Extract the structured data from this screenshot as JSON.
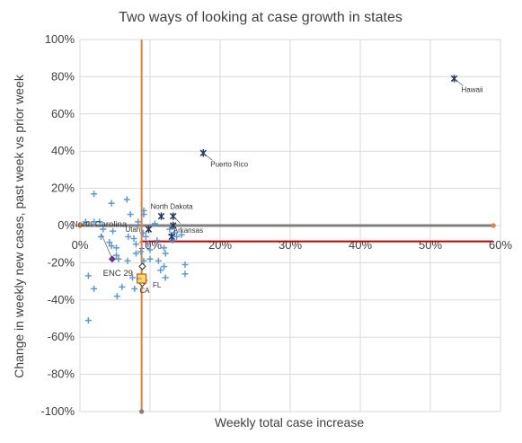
{
  "chart_data": {
    "type": "scatter",
    "title": "Two ways of looking at case growth in states",
    "xlabel": "Weekly total case increase",
    "ylabel": "Change in weekly new cases, past week vs prior week",
    "xlim": [
      0,
      0.6
    ],
    "ylim": [
      -1.0,
      1.0
    ],
    "x_ticks": [
      0,
      0.1,
      0.2,
      0.3,
      0.4,
      0.5,
      0.6
    ],
    "x_tick_labels": [
      "0%",
      "10%",
      "20%",
      "30%",
      "40%",
      "50%",
      "60%"
    ],
    "y_ticks": [
      1.0,
      0.8,
      0.6,
      0.4,
      0.2,
      0.0,
      -0.2,
      -0.4,
      -0.6,
      -0.8,
      -1.0
    ],
    "y_tick_labels": [
      "100%",
      "80%",
      "60%",
      "40%",
      "20%",
      "0%",
      "-20%",
      "-40%",
      "-60%",
      "-80%",
      "-100%"
    ],
    "grid": true,
    "legend": "none",
    "colors": {
      "states": "#5b9bd5",
      "labeled_states": "#1f3864",
      "orange_ref": "#ed7d31",
      "gray_ref": "#808080",
      "red_ref": "#c00000",
      "north_carolina": "#7030a0",
      "enc": "#ffd966",
      "grid": "#d9d9d9"
    },
    "reference_lines": {
      "vertical_orange": {
        "x": 0.088,
        "y_range": [
          -1.0,
          1.0
        ]
      },
      "horizontal_gray": {
        "y": 0.0,
        "x_range": [
          0.0,
          0.59
        ]
      },
      "horizontal_red": {
        "y": -0.085,
        "x_range": [
          0.088,
          0.59
        ]
      }
    },
    "series": [
      {
        "marker": "plus",
        "points": [
          {
            "x": 0.02,
            "y": 0.17
          },
          {
            "x": 0.045,
            "y": 0.12
          },
          {
            "x": 0.067,
            "y": 0.14
          },
          {
            "x": 0.072,
            "y": 0.06
          },
          {
            "x": 0.083,
            "y": 0.02
          },
          {
            "x": 0.091,
            "y": 0.08
          },
          {
            "x": 0.091,
            "y": 0.06
          },
          {
            "x": 0.028,
            "y": 0.02
          },
          {
            "x": 0.02,
            "y": 0.02
          },
          {
            "x": 0.008,
            "y": 0.02
          },
          {
            "x": 0.033,
            "y": -0.02
          },
          {
            "x": 0.047,
            "y": -0.03
          },
          {
            "x": 0.03,
            "y": -0.06
          },
          {
            "x": 0.042,
            "y": -0.09
          },
          {
            "x": 0.045,
            "y": -0.11
          },
          {
            "x": 0.052,
            "y": -0.12
          },
          {
            "x": 0.069,
            "y": -0.06
          },
          {
            "x": 0.077,
            "y": -0.07
          },
          {
            "x": 0.08,
            "y": -0.1
          },
          {
            "x": 0.09,
            "y": -0.04
          },
          {
            "x": 0.094,
            "y": -0.06
          },
          {
            "x": 0.097,
            "y": -0.1
          },
          {
            "x": 0.1,
            "y": -0.13
          },
          {
            "x": 0.107,
            "y": 0.01
          },
          {
            "x": 0.11,
            "y": -0.08
          },
          {
            "x": 0.12,
            "y": -0.12
          },
          {
            "x": 0.122,
            "y": -0.15
          },
          {
            "x": 0.128,
            "y": -0.02
          },
          {
            "x": 0.13,
            "y": -0.05
          },
          {
            "x": 0.132,
            "y": -0.08
          },
          {
            "x": 0.135,
            "y": -0.04
          },
          {
            "x": 0.138,
            "y": -0.06
          },
          {
            "x": 0.145,
            "y": -0.05
          },
          {
            "x": 0.052,
            "y": -0.16
          },
          {
            "x": 0.055,
            "y": -0.18
          },
          {
            "x": 0.068,
            "y": -0.19
          },
          {
            "x": 0.08,
            "y": -0.15
          },
          {
            "x": 0.087,
            "y": -0.14
          },
          {
            "x": 0.091,
            "y": -0.19
          },
          {
            "x": 0.1,
            "y": -0.18
          },
          {
            "x": 0.112,
            "y": -0.19
          },
          {
            "x": 0.115,
            "y": -0.24
          },
          {
            "x": 0.12,
            "y": -0.22
          },
          {
            "x": 0.122,
            "y": -0.28
          },
          {
            "x": 0.15,
            "y": -0.21
          },
          {
            "x": 0.15,
            "y": -0.26
          },
          {
            "x": 0.075,
            "y": -0.28
          },
          {
            "x": 0.078,
            "y": -0.34
          },
          {
            "x": 0.06,
            "y": -0.33
          },
          {
            "x": 0.053,
            "y": -0.38
          },
          {
            "x": 0.012,
            "y": -0.27
          },
          {
            "x": 0.02,
            "y": -0.34
          },
          {
            "x": 0.012,
            "y": -0.51
          }
        ]
      },
      {
        "marker": "star",
        "points": [
          {
            "label": "Hawaii",
            "x": 0.534,
            "y": 0.79
          },
          {
            "label": "Puerto Rico",
            "x": 0.176,
            "y": 0.39
          },
          {
            "label": "North Dakota",
            "x": 0.116,
            "y": 0.05
          },
          {
            "label": "",
            "x": 0.133,
            "y": 0.05
          },
          {
            "label": "Arkansas",
            "x": 0.133,
            "y": 0.0
          },
          {
            "label": "Utah",
            "x": 0.098,
            "y": -0.02
          },
          {
            "label": "",
            "x": 0.131,
            "y": -0.06
          }
        ]
      },
      {
        "marker": "diamond",
        "points": [
          {
            "label": "North Carolina",
            "x": 0.046,
            "y": -0.18
          }
        ]
      },
      {
        "marker": "diamond_open",
        "points": [
          {
            "label": "",
            "x": 0.089,
            "y": -0.22
          },
          {
            "label": "CA",
            "x": 0.089,
            "y": -0.31
          },
          {
            "label": "FL",
            "x": 0.091,
            "y": -0.295
          }
        ]
      },
      {
        "marker": "square",
        "points": [
          {
            "label": "ENC 29",
            "x": 0.088,
            "y": -0.285
          }
        ]
      },
      {
        "marker": "ref_points",
        "points": [
          {
            "x": 0.0,
            "y": 0.0
          },
          {
            "x": 0.59,
            "y": 0.0
          },
          {
            "x": 0.088,
            "y": -1.0
          }
        ]
      }
    ]
  }
}
